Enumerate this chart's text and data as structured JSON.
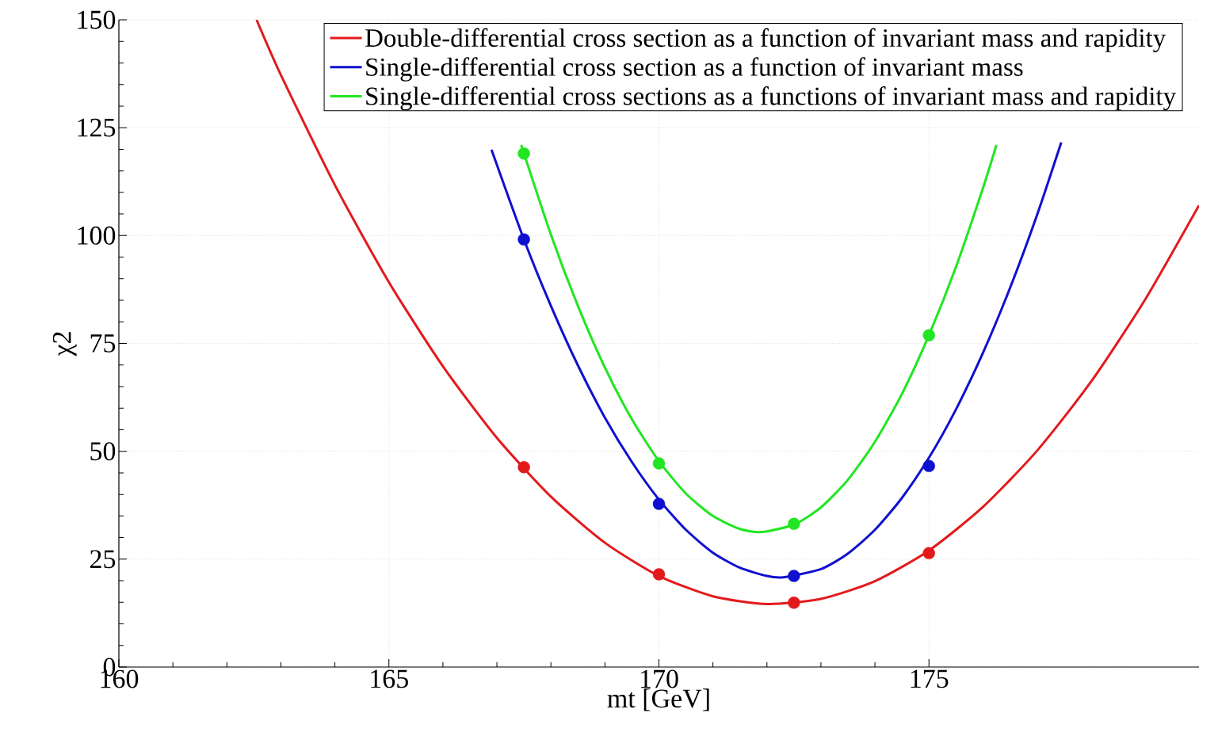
{
  "chart_data": {
    "type": "line",
    "xlabel": "mt [GeV]",
    "ylabel": "χ2",
    "xlim": [
      160,
      180
    ],
    "ylim": [
      0,
      150
    ],
    "xticks": [
      160,
      165,
      170,
      175
    ],
    "yticks": [
      0,
      25,
      50,
      75,
      100,
      125,
      150
    ],
    "grid": true,
    "legend": "top right",
    "series": [
      {
        "name": "Double-differential cross section as a function of invariant mass and rapidity",
        "color": "#e31a1c",
        "marker": "none",
        "line_style": "solid",
        "x": [
          162.55,
          163,
          164,
          165,
          166,
          167,
          168,
          169,
          170,
          171,
          172,
          173,
          174,
          175,
          176,
          177,
          178,
          179,
          180
        ],
        "values": [
          150,
          137.2,
          111.7,
          89.2,
          69.7,
          53.1,
          39.5,
          28.8,
          21.1,
          16.4,
          14.6,
          15.8,
          19.9,
          27.0,
          37.1,
          50.1,
          66.1,
          85.1,
          107.0
        ]
      },
      {
        "name": "Single-differential cross section as a function of invariant mass",
        "color": "#1010d0",
        "marker": "none",
        "line_style": "solid",
        "x": [
          166.9,
          167.5,
          168,
          168.5,
          169,
          169.5,
          170,
          170.5,
          171,
          171.5,
          172,
          172.3,
          173,
          173.5,
          174,
          174.5,
          175,
          175.5,
          176,
          176.5,
          177,
          177.45
        ],
        "values": [
          119.9,
          99.1,
          83.7,
          69.9,
          57.8,
          47.5,
          38.8,
          31.8,
          26.5,
          23.0,
          21.1,
          20.8,
          22.7,
          26.3,
          31.8,
          39.2,
          48.5,
          59.7,
          72.8,
          87.8,
          104.7,
          121.6
        ]
      },
      {
        "name": "Single-differential cross sections as a functions of invariant mass and rapidity",
        "color": "#22e622",
        "marker": "none",
        "line_style": "solid",
        "x": [
          167.45,
          168,
          168.5,
          169,
          169.5,
          170,
          170.5,
          171,
          171.5,
          171.9,
          172.5,
          173,
          173.5,
          174,
          174.5,
          175,
          175.5,
          176,
          176.25
        ],
        "values": [
          121.0,
          100.2,
          83.7,
          69.4,
          57.4,
          47.7,
          40.2,
          35.0,
          32.0,
          31.3,
          33.0,
          37.0,
          43.4,
          52.2,
          63.3,
          76.9,
          92.7,
          111.0,
          121.0
        ]
      },
      {
        "type": "scatter",
        "color": "#e31a1c",
        "marker": "circle",
        "x": [
          167.5,
          170,
          172.5,
          175
        ],
        "values": [
          46.3,
          21.5,
          14.9,
          26.4
        ]
      },
      {
        "type": "scatter",
        "color": "#1010d0",
        "marker": "circle",
        "x": [
          167.5,
          170,
          172.5,
          175
        ],
        "values": [
          99.1,
          37.8,
          21.1,
          46.6
        ]
      },
      {
        "type": "scatter",
        "color": "#22e622",
        "marker": "circle",
        "x": [
          167.5,
          170,
          172.5,
          175
        ],
        "values": [
          119,
          47.2,
          33.2,
          76.9
        ]
      }
    ]
  }
}
